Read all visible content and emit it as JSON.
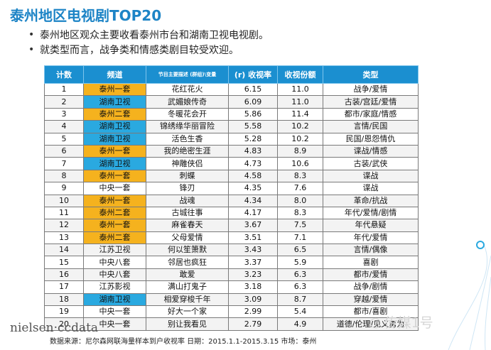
{
  "title": "泰州地区电视剧TOP20",
  "bullets": [
    "泰州地区观众主要收看泰州市台和湖南卫视电视剧。",
    "就类型而言，战争类和情感类剧目较受欢迎。"
  ],
  "table": {
    "headers": {
      "rank": "计数",
      "channel": "频道",
      "program": "节目主要描述 (群组)",
      "program_suffix": "变量",
      "rating": "(r) 收视率",
      "share": "收视份额",
      "genre": "类型"
    },
    "rows": [
      {
        "rank": "1",
        "channel": "泰州一套",
        "program": "花红花火",
        "rating": "6.15",
        "share": "11.0",
        "genre": "战争/爱情"
      },
      {
        "rank": "2",
        "channel": "湖南卫视",
        "program": "武媚娘传奇",
        "rating": "6.09",
        "share": "11.0",
        "genre": "古装/宫廷/爱情"
      },
      {
        "rank": "3",
        "channel": "泰州二套",
        "program": "冬暖花会开",
        "rating": "5.86",
        "share": "11.4",
        "genre": "都市/家庭/情感"
      },
      {
        "rank": "4",
        "channel": "湖南卫视",
        "program": "锦绣缘华丽冒险",
        "rating": "5.58",
        "share": "10.2",
        "genre": "言情/民国"
      },
      {
        "rank": "5",
        "channel": "湖南卫视",
        "program": "活色生香",
        "rating": "5.28",
        "share": "10.2",
        "genre": "民国/恩怨情仇"
      },
      {
        "rank": "6",
        "channel": "泰州一套",
        "program": "我的绝密生涯",
        "rating": "4.83",
        "share": "8.9",
        "genre": "谍战/情感"
      },
      {
        "rank": "7",
        "channel": "湖南卫视",
        "program": "神雕侠侣",
        "rating": "4.73",
        "share": "10.6",
        "genre": "古装/武侠"
      },
      {
        "rank": "8",
        "channel": "泰州一套",
        "program": "刺蝶",
        "rating": "4.58",
        "share": "8.3",
        "genre": "谍战"
      },
      {
        "rank": "9",
        "channel": "中央一套",
        "program": "锋刃",
        "rating": "4.35",
        "share": "7.6",
        "genre": "谍战"
      },
      {
        "rank": "10",
        "channel": "泰州一套",
        "program": "战魂",
        "rating": "4.34",
        "share": "8.0",
        "genre": "革命/抗战"
      },
      {
        "rank": "11",
        "channel": "泰州二套",
        "program": "古城往事",
        "rating": "4.17",
        "share": "8.3",
        "genre": "年代/爱情/剧情"
      },
      {
        "rank": "12",
        "channel": "泰州一套",
        "program": "麻雀春天",
        "rating": "3.67",
        "share": "7.5",
        "genre": "年代悬疑"
      },
      {
        "rank": "13",
        "channel": "泰州二套",
        "program": "父母爱情",
        "rating": "3.51",
        "share": "7.1",
        "genre": "年代/爱情"
      },
      {
        "rank": "14",
        "channel": "江苏卫视",
        "program": "何以笙箫默",
        "rating": "3.43",
        "share": "6.5",
        "genre": "言情/偶像"
      },
      {
        "rank": "15",
        "channel": "中央八套",
        "program": "邻居也疯狂",
        "rating": "3.37",
        "share": "5.9",
        "genre": "喜剧"
      },
      {
        "rank": "16",
        "channel": "中央八套",
        "program": "敢爱",
        "rating": "3.23",
        "share": "6.3",
        "genre": "都市/爱情"
      },
      {
        "rank": "17",
        "channel": "江苏影视",
        "program": "满山打鬼子",
        "rating": "3.18",
        "share": "6.3",
        "genre": "战争/剧情"
      },
      {
        "rank": "18",
        "channel": "湖南卫视",
        "program": "相爱穿梭千年",
        "rating": "3.09",
        "share": "8.7",
        "genre": "穿越/爱情"
      },
      {
        "rank": "19",
        "channel": "中央一套",
        "program": "好大一个家",
        "rating": "2.99",
        "share": "5.4",
        "genre": "都市/喜剧"
      },
      {
        "rank": "20",
        "channel": "中央一套",
        "program": "别让我看见",
        "rating": "2.79",
        "share": "4.9",
        "genre": "道德/伦理/见义勇为"
      }
    ],
    "channel_colors": {
      "泰州一套": "#f5b21e",
      "泰州二套": "#f5b21e",
      "湖南卫视": "#2aa9e0"
    }
  },
  "footer": {
    "logo": "nielsen·ccdata",
    "source": "数据来源：尼尔森网联海量样本到户收视率 日期：2015.1.1-2015.3.15 市场：泰州"
  },
  "watermark": "传媒1号",
  "colors": {
    "title": "#1d84c6",
    "header_bg": "#1b8fd0",
    "highlight_orange": "#f5b21e",
    "highlight_blue": "#2aa9e0"
  }
}
